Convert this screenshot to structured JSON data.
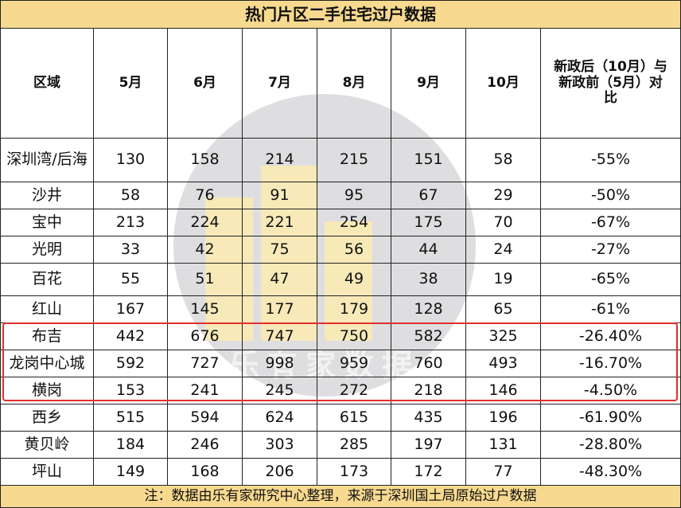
{
  "title": "热门片区二手住宅过户数据",
  "headers": {
    "district": "区域",
    "m5": "5月",
    "m6": "6月",
    "m7": "7月",
    "m8": "8月",
    "m9": "9月",
    "m10": "10月",
    "compare": "新政后（10月）与新政前（5月）对比"
  },
  "rows": [
    {
      "district": "深圳湾/后海",
      "m5": "130",
      "m6": "158",
      "m7": "214",
      "m8": "215",
      "m9": "151",
      "m10": "58",
      "compare": "-55%"
    },
    {
      "district": "沙井",
      "m5": "58",
      "m6": "76",
      "m7": "91",
      "m8": "95",
      "m9": "67",
      "m10": "29",
      "compare": "-50%"
    },
    {
      "district": "宝中",
      "m5": "213",
      "m6": "224",
      "m7": "221",
      "m8": "254",
      "m9": "175",
      "m10": "70",
      "compare": "-67%"
    },
    {
      "district": "光明",
      "m5": "33",
      "m6": "42",
      "m7": "75",
      "m8": "56",
      "m9": "44",
      "m10": "24",
      "compare": "-27%"
    },
    {
      "district": "百花",
      "m5": "55",
      "m6": "51",
      "m7": "47",
      "m8": "49",
      "m9": "38",
      "m10": "19",
      "compare": "-65%"
    },
    {
      "district": "红山",
      "m5": "167",
      "m6": "145",
      "m7": "177",
      "m8": "179",
      "m9": "128",
      "m10": "65",
      "compare": "-61%"
    },
    {
      "district": "布吉",
      "m5": "442",
      "m6": "676",
      "m7": "747",
      "m8": "750",
      "m9": "582",
      "m10": "325",
      "compare": "-26.40%"
    },
    {
      "district": "龙岗中心城",
      "m5": "592",
      "m6": "727",
      "m7": "998",
      "m8": "959",
      "m9": "760",
      "m10": "493",
      "compare": "-16.70%"
    },
    {
      "district": "横岗",
      "m5": "153",
      "m6": "241",
      "m7": "245",
      "m8": "272",
      "m9": "218",
      "m10": "146",
      "compare": "-4.50%"
    },
    {
      "district": "西乡",
      "m5": "515",
      "m6": "594",
      "m7": "624",
      "m8": "615",
      "m9": "435",
      "m10": "196",
      "compare": "-61.90%"
    },
    {
      "district": "黄贝岭",
      "m5": "184",
      "m6": "246",
      "m7": "303",
      "m8": "285",
      "m9": "197",
      "m10": "131",
      "compare": "-28.80%"
    },
    {
      "district": "坪山",
      "m5": "149",
      "m6": "168",
      "m7": "206",
      "m8": "173",
      "m9": "172",
      "m10": "77",
      "compare": "-48.30%"
    }
  ],
  "footer": "注：数据由乐有家研究中心整理，来源于深圳国土局原始过户数据",
  "watermark_text": "乐有家数据",
  "colors": {
    "header_fill": "#f7d98f",
    "highlight_border": "#e0302a",
    "watermark_circle": "#c3c3c8"
  }
}
